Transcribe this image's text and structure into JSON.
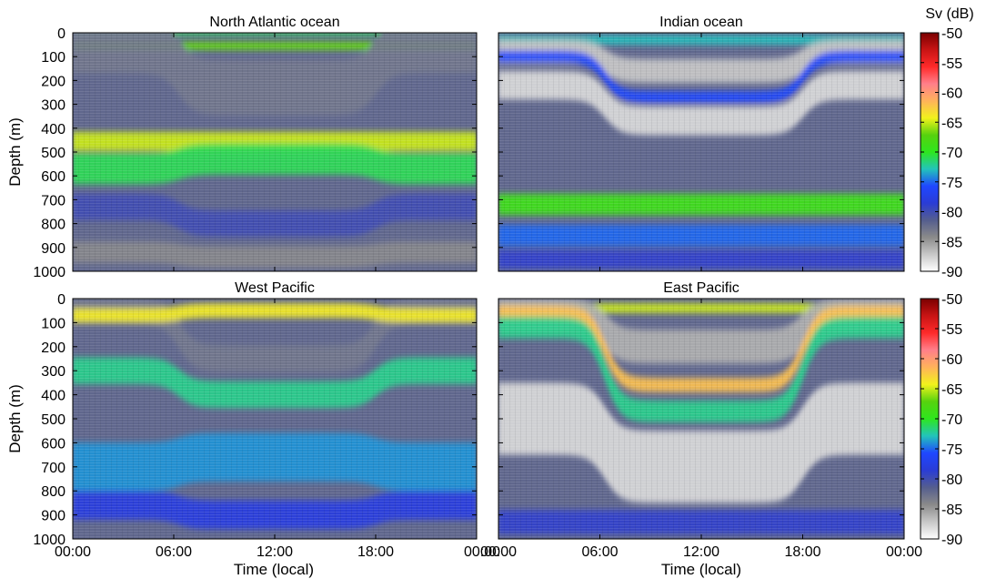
{
  "chart_data": {
    "type": "heatmap",
    "colorbar_label": "Sv (dB)",
    "colorbar_range": [
      -90,
      -50
    ],
    "colorbar_ticks": [
      "-50",
      "-55",
      "-60",
      "-65",
      "-70",
      "-75",
      "-80",
      "-85",
      "-90"
    ],
    "colormap": [
      "#ffffff",
      "#c8c8c8",
      "#8a8a8a",
      "#555e8e",
      "#2a3cd6",
      "#1f47ff",
      "#23c4ba",
      "#2ee61e",
      "#56d20e",
      "#f2f21c",
      "#ffb35a",
      "#ff7f8a",
      "#ff2a2a",
      "#c81414",
      "#7a0000"
    ],
    "ylabel": "Depth (m)",
    "xlabel": "Time (local)",
    "ylim": [
      1000,
      0
    ],
    "y_ticks": [
      "0",
      "100",
      "200",
      "300",
      "400",
      "500",
      "600",
      "700",
      "800",
      "900",
      "1000"
    ],
    "x_ticks": [
      "00:00",
      "06:00",
      "12:00",
      "18:00",
      "00:00"
    ],
    "panels": [
      {
        "title": "North Atlantic ocean",
        "layers": [
          {
            "depth_day": 0,
            "depth_night": 0,
            "thickness": 20,
            "sv": -71
          },
          {
            "depth_day": 55,
            "depth_night": 55,
            "thickness": 35,
            "sv": -67
          },
          {
            "depth_day": 230,
            "depth_night": 55,
            "thickness": 230,
            "sv": -83
          },
          {
            "depth_day": 455,
            "depth_night": 455,
            "thickness": 80,
            "sv": -65
          },
          {
            "depth_day": 530,
            "depth_night": 570,
            "thickness": 130,
            "sv": -71
          },
          {
            "depth_day": 800,
            "depth_night": 730,
            "thickness": 110,
            "sv": -80
          },
          {
            "depth_day": 940,
            "depth_night": 920,
            "thickness": 90,
            "sv": -84
          }
        ]
      },
      {
        "title": "Indian ocean",
        "layers": [
          {
            "depth_day": 30,
            "depth_night": 30,
            "thickness": 40,
            "sv": -73
          },
          {
            "depth_day": 160,
            "depth_night": 80,
            "thickness": 100,
            "sv": -87
          },
          {
            "depth_day": 270,
            "depth_night": 100,
            "thickness": 50,
            "sv": -76
          },
          {
            "depth_day": 370,
            "depth_night": 220,
            "thickness": 120,
            "sv": -88
          },
          {
            "depth_day": 720,
            "depth_night": 720,
            "thickness": 90,
            "sv": -69
          },
          {
            "depth_day": 850,
            "depth_night": 850,
            "thickness": 90,
            "sv": -75
          },
          {
            "depth_day": 950,
            "depth_night": 950,
            "thickness": 80,
            "sv": -79
          }
        ]
      },
      {
        "title": "West Pacific",
        "layers": [
          {
            "depth_day": 250,
            "depth_night": 50,
            "thickness": 110,
            "sv": -83
          },
          {
            "depth_day": 50,
            "depth_night": 70,
            "thickness": 60,
            "sv": -64
          },
          {
            "depth_day": 400,
            "depth_night": 300,
            "thickness": 110,
            "sv": -72
          },
          {
            "depth_day": 660,
            "depth_night": 700,
            "thickness": 200,
            "sv": -74
          },
          {
            "depth_day": 900,
            "depth_night": 860,
            "thickness": 120,
            "sv": -78
          }
        ]
      },
      {
        "title": "East Pacific",
        "layers": [
          {
            "depth_day": 40,
            "depth_night": 40,
            "thickness": 40,
            "sv": -65
          },
          {
            "depth_day": 200,
            "depth_night": 70,
            "thickness": 140,
            "sv": -86
          },
          {
            "depth_day": 360,
            "depth_night": 60,
            "thickness": 60,
            "sv": -62
          },
          {
            "depth_day": 470,
            "depth_night": 120,
            "thickness": 90,
            "sv": -72
          },
          {
            "depth_day": 700,
            "depth_night": 500,
            "thickness": 300,
            "sv": -88
          },
          {
            "depth_day": 930,
            "depth_night": 930,
            "thickness": 100,
            "sv": -79
          }
        ]
      }
    ]
  }
}
